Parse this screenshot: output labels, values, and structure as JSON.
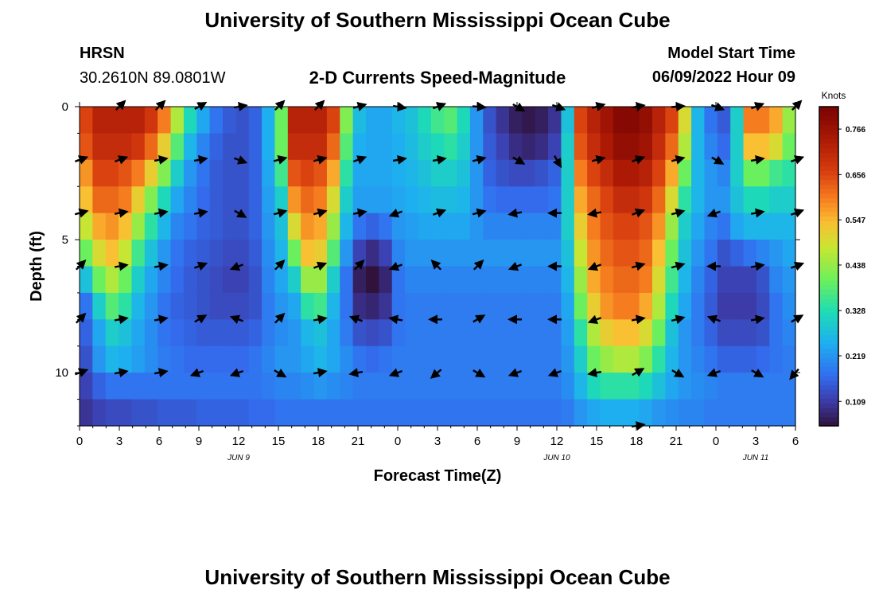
{
  "page": {
    "title": "University of Southern Mississippi Ocean Cube",
    "title_bottom": "University of Southern Mississippi Ocean Cube",
    "station": "HRSN",
    "coords": "30.2610N  89.0801W",
    "subtitle": "2-D Currents Speed-Magnitude",
    "model_start_label": "Model Start Time",
    "model_start_value": "06/09/2022 Hour 09"
  },
  "chart_data": {
    "type": "heatmap",
    "title": "2-D Currents Speed-Magnitude",
    "xlabel": "Forecast Time(Z)",
    "ylabel": "Depth (ft)",
    "x_range_hours": [
      0,
      54
    ],
    "y_range_ft": [
      0,
      12
    ],
    "y_inverted": true,
    "x_ticks": [
      "0",
      "3",
      "6",
      "9",
      "12",
      "15",
      "18",
      "21",
      "0",
      "3",
      "6",
      "9",
      "12",
      "15",
      "18",
      "21",
      "0",
      "3",
      "6"
    ],
    "y_ticks": [
      "0",
      "5",
      "10"
    ],
    "date_labels": [
      {
        "text": "JUN 9",
        "hour": 12
      },
      {
        "text": "JUN 10",
        "hour": 36
      },
      {
        "text": "JUN 11",
        "hour": 51
      }
    ],
    "colorbar": {
      "unit": "Knots",
      "min": 0.05,
      "max": 0.82,
      "ticks": [
        "0.766",
        "0.656",
        "0.547",
        "0.438",
        "0.328",
        "0.219",
        "0.109"
      ],
      "tick_values": [
        0.766,
        0.656,
        0.547,
        0.438,
        0.328,
        0.219,
        0.109
      ]
    },
    "time_hours": [
      0,
      1,
      2,
      3,
      4,
      5,
      6,
      7,
      8,
      9,
      10,
      11,
      12,
      13,
      14,
      15,
      16,
      17,
      18,
      19,
      20,
      21,
      22,
      23,
      24,
      25,
      26,
      27,
      28,
      29,
      30,
      31,
      32,
      33,
      34,
      35,
      36,
      37,
      38,
      39,
      40,
      41,
      42,
      43,
      44,
      45,
      46,
      47,
      48,
      49,
      50,
      51,
      52,
      53,
      54
    ],
    "depth_ft": [
      0.5,
      1.5,
      2.5,
      3.5,
      4.5,
      5.5,
      6.5,
      7.5,
      8.5,
      9.5,
      10.5,
      11.5
    ],
    "speed": [
      [
        0.66,
        0.72,
        0.72,
        0.72,
        0.72,
        0.68,
        0.6,
        0.46,
        0.32,
        0.24,
        0.18,
        0.15,
        0.14,
        0.16,
        0.25,
        0.4,
        0.72,
        0.72,
        0.72,
        0.66,
        0.42,
        0.27,
        0.24,
        0.24,
        0.26,
        0.28,
        0.32,
        0.36,
        0.38,
        0.32,
        0.22,
        0.14,
        0.1,
        0.07,
        0.06,
        0.07,
        0.1,
        0.28,
        0.66,
        0.72,
        0.76,
        0.8,
        0.8,
        0.78,
        0.72,
        0.66,
        0.5,
        0.26,
        0.18,
        0.15,
        0.3,
        0.6,
        0.6,
        0.56,
        0.44
      ],
      [
        0.64,
        0.7,
        0.7,
        0.7,
        0.68,
        0.62,
        0.52,
        0.38,
        0.26,
        0.2,
        0.16,
        0.14,
        0.14,
        0.16,
        0.25,
        0.4,
        0.7,
        0.7,
        0.7,
        0.62,
        0.38,
        0.25,
        0.24,
        0.24,
        0.25,
        0.27,
        0.3,
        0.32,
        0.34,
        0.3,
        0.22,
        0.15,
        0.12,
        0.09,
        0.08,
        0.09,
        0.12,
        0.3,
        0.64,
        0.7,
        0.74,
        0.78,
        0.78,
        0.76,
        0.7,
        0.62,
        0.46,
        0.26,
        0.2,
        0.17,
        0.3,
        0.54,
        0.54,
        0.5,
        0.4
      ],
      [
        0.58,
        0.66,
        0.66,
        0.64,
        0.6,
        0.52,
        0.42,
        0.3,
        0.22,
        0.18,
        0.15,
        0.14,
        0.14,
        0.16,
        0.24,
        0.36,
        0.64,
        0.66,
        0.64,
        0.56,
        0.34,
        0.24,
        0.24,
        0.24,
        0.25,
        0.26,
        0.28,
        0.3,
        0.3,
        0.28,
        0.22,
        0.16,
        0.14,
        0.13,
        0.13,
        0.14,
        0.16,
        0.3,
        0.6,
        0.66,
        0.7,
        0.74,
        0.74,
        0.72,
        0.66,
        0.56,
        0.4,
        0.26,
        0.22,
        0.2,
        0.3,
        0.4,
        0.4,
        0.36,
        0.34
      ],
      [
        0.54,
        0.62,
        0.62,
        0.6,
        0.52,
        0.42,
        0.32,
        0.24,
        0.2,
        0.17,
        0.15,
        0.14,
        0.14,
        0.16,
        0.23,
        0.3,
        0.58,
        0.62,
        0.6,
        0.5,
        0.3,
        0.23,
        0.23,
        0.23,
        0.24,
        0.25,
        0.26,
        0.27,
        0.27,
        0.26,
        0.22,
        0.18,
        0.17,
        0.17,
        0.17,
        0.17,
        0.18,
        0.3,
        0.56,
        0.62,
        0.66,
        0.7,
        0.7,
        0.68,
        0.62,
        0.5,
        0.34,
        0.26,
        0.22,
        0.22,
        0.28,
        0.32,
        0.32,
        0.3,
        0.3
      ],
      [
        0.48,
        0.56,
        0.58,
        0.54,
        0.44,
        0.34,
        0.26,
        0.2,
        0.18,
        0.16,
        0.15,
        0.14,
        0.14,
        0.16,
        0.22,
        0.28,
        0.5,
        0.58,
        0.56,
        0.44,
        0.26,
        0.18,
        0.16,
        0.18,
        0.22,
        0.23,
        0.24,
        0.24,
        0.24,
        0.24,
        0.22,
        0.2,
        0.2,
        0.2,
        0.2,
        0.2,
        0.2,
        0.3,
        0.52,
        0.6,
        0.64,
        0.66,
        0.66,
        0.64,
        0.58,
        0.44,
        0.3,
        0.24,
        0.2,
        0.18,
        0.24,
        0.26,
        0.26,
        0.26,
        0.26
      ],
      [
        0.4,
        0.5,
        0.54,
        0.48,
        0.36,
        0.28,
        0.22,
        0.18,
        0.16,
        0.15,
        0.14,
        0.13,
        0.13,
        0.15,
        0.21,
        0.26,
        0.4,
        0.54,
        0.52,
        0.38,
        0.22,
        0.12,
        0.09,
        0.12,
        0.2,
        0.22,
        0.22,
        0.22,
        0.22,
        0.22,
        0.22,
        0.22,
        0.22,
        0.22,
        0.22,
        0.22,
        0.22,
        0.28,
        0.48,
        0.58,
        0.62,
        0.64,
        0.64,
        0.62,
        0.54,
        0.4,
        0.28,
        0.22,
        0.18,
        0.14,
        0.16,
        0.18,
        0.2,
        0.22,
        0.24
      ],
      [
        0.28,
        0.4,
        0.46,
        0.4,
        0.3,
        0.24,
        0.2,
        0.17,
        0.15,
        0.14,
        0.13,
        0.12,
        0.12,
        0.14,
        0.2,
        0.24,
        0.3,
        0.44,
        0.44,
        0.3,
        0.18,
        0.07,
        0.05,
        0.08,
        0.18,
        0.2,
        0.2,
        0.2,
        0.2,
        0.2,
        0.2,
        0.2,
        0.2,
        0.2,
        0.2,
        0.2,
        0.2,
        0.26,
        0.44,
        0.56,
        0.6,
        0.62,
        0.62,
        0.6,
        0.5,
        0.36,
        0.26,
        0.2,
        0.16,
        0.12,
        0.12,
        0.12,
        0.14,
        0.2,
        0.22
      ],
      [
        0.18,
        0.3,
        0.38,
        0.34,
        0.26,
        0.22,
        0.18,
        0.16,
        0.15,
        0.14,
        0.13,
        0.13,
        0.13,
        0.14,
        0.19,
        0.22,
        0.24,
        0.34,
        0.36,
        0.26,
        0.18,
        0.09,
        0.08,
        0.1,
        0.18,
        0.19,
        0.19,
        0.19,
        0.19,
        0.19,
        0.19,
        0.19,
        0.19,
        0.19,
        0.19,
        0.19,
        0.19,
        0.24,
        0.4,
        0.52,
        0.58,
        0.6,
        0.6,
        0.56,
        0.46,
        0.32,
        0.24,
        0.19,
        0.15,
        0.11,
        0.11,
        0.11,
        0.13,
        0.18,
        0.21
      ],
      [
        0.16,
        0.24,
        0.3,
        0.28,
        0.24,
        0.21,
        0.18,
        0.17,
        0.16,
        0.15,
        0.15,
        0.15,
        0.15,
        0.16,
        0.19,
        0.21,
        0.22,
        0.26,
        0.28,
        0.24,
        0.19,
        0.14,
        0.13,
        0.14,
        0.18,
        0.19,
        0.19,
        0.19,
        0.19,
        0.19,
        0.19,
        0.19,
        0.19,
        0.19,
        0.19,
        0.19,
        0.19,
        0.23,
        0.34,
        0.46,
        0.52,
        0.54,
        0.54,
        0.5,
        0.4,
        0.28,
        0.22,
        0.19,
        0.16,
        0.13,
        0.13,
        0.13,
        0.14,
        0.18,
        0.2
      ],
      [
        0.14,
        0.22,
        0.26,
        0.25,
        0.23,
        0.21,
        0.19,
        0.18,
        0.17,
        0.17,
        0.17,
        0.17,
        0.17,
        0.18,
        0.2,
        0.22,
        0.22,
        0.24,
        0.26,
        0.24,
        0.21,
        0.18,
        0.17,
        0.18,
        0.19,
        0.19,
        0.19,
        0.19,
        0.19,
        0.19,
        0.19,
        0.19,
        0.19,
        0.19,
        0.19,
        0.19,
        0.19,
        0.22,
        0.3,
        0.4,
        0.44,
        0.46,
        0.46,
        0.42,
        0.34,
        0.26,
        0.22,
        0.2,
        0.18,
        0.16,
        0.16,
        0.16,
        0.17,
        0.18,
        0.19
      ],
      [
        0.12,
        0.16,
        0.18,
        0.18,
        0.18,
        0.18,
        0.18,
        0.18,
        0.18,
        0.18,
        0.18,
        0.18,
        0.18,
        0.18,
        0.19,
        0.2,
        0.2,
        0.21,
        0.22,
        0.21,
        0.2,
        0.19,
        0.19,
        0.19,
        0.19,
        0.19,
        0.19,
        0.19,
        0.19,
        0.19,
        0.19,
        0.19,
        0.19,
        0.19,
        0.19,
        0.19,
        0.19,
        0.21,
        0.26,
        0.32,
        0.34,
        0.34,
        0.34,
        0.32,
        0.28,
        0.24,
        0.22,
        0.21,
        0.2,
        0.19,
        0.19,
        0.19,
        0.19,
        0.19,
        0.19
      ],
      [
        0.1,
        0.12,
        0.13,
        0.13,
        0.14,
        0.14,
        0.15,
        0.15,
        0.15,
        0.16,
        0.16,
        0.16,
        0.16,
        0.17,
        0.17,
        0.18,
        0.18,
        0.18,
        0.18,
        0.18,
        0.18,
        0.18,
        0.18,
        0.18,
        0.18,
        0.18,
        0.18,
        0.18,
        0.18,
        0.18,
        0.18,
        0.18,
        0.18,
        0.18,
        0.18,
        0.18,
        0.18,
        0.19,
        0.22,
        0.24,
        0.25,
        0.25,
        0.25,
        0.24,
        0.22,
        0.21,
        0.2,
        0.2,
        0.19,
        0.19,
        0.19,
        0.19,
        0.19,
        0.19,
        0.19
      ]
    ],
    "vector_depths_ft": [
      0,
      2,
      4,
      6,
      8,
      10,
      12
    ],
    "vector_hours": [
      0,
      3,
      6,
      9,
      12,
      15,
      18,
      21,
      24,
      27,
      30,
      33,
      36,
      39,
      42,
      45,
      48,
      51,
      54
    ],
    "vector_direction_deg": [
      [
        null,
        45,
        45,
        30,
        10,
        45,
        45,
        15,
        350,
        20,
        355,
        330,
        340,
        15,
        10,
        5,
        340,
        20,
        45
      ],
      [
        20,
        20,
        10,
        10,
        340,
        15,
        15,
        20,
        10,
        10,
        15,
        330,
        300,
        15,
        20,
        15,
        330,
        10,
        20
      ],
      [
        15,
        10,
        10,
        10,
        330,
        15,
        15,
        10,
        200,
        20,
        15,
        190,
        180,
        190,
        20,
        15,
        200,
        10,
        20
      ],
      [
        45,
        10,
        10,
        20,
        200,
        45,
        20,
        45,
        200,
        135,
        45,
        200,
        180,
        200,
        15,
        15,
        180,
        10,
        20
      ],
      [
        45,
        10,
        10,
        30,
        160,
        45,
        10,
        160,
        170,
        180,
        30,
        180,
        180,
        200,
        10,
        15,
        160,
        10,
        30
      ],
      [
        20,
        10,
        10,
        200,
        200,
        330,
        10,
        190,
        200,
        220,
        330,
        200,
        200,
        190,
        30,
        330,
        200,
        330,
        230
      ],
      [
        null,
        null,
        null,
        null,
        null,
        null,
        null,
        null,
        null,
        null,
        null,
        null,
        null,
        null,
        10,
        null,
        null,
        null,
        null
      ]
    ]
  }
}
